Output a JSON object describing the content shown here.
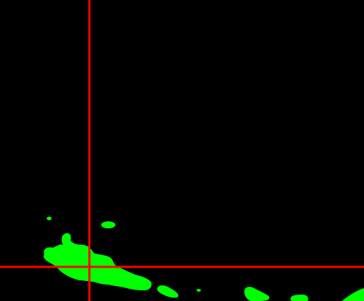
{
  "view": {
    "background_color": "#000000",
    "mask_color": "#00ff00",
    "crosshair_color": "#ff0000",
    "mask_label": "segmentation-mask",
    "crosshair_label": "crosshair"
  }
}
